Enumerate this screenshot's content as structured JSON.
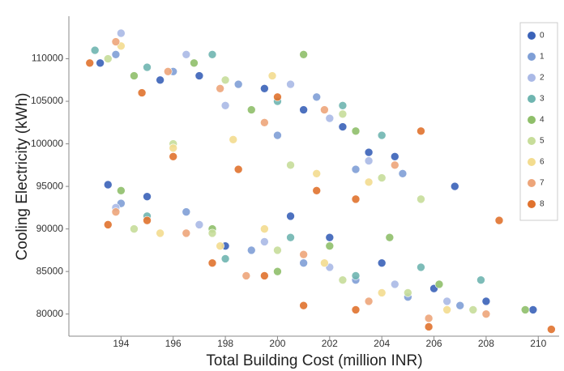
{
  "chart_data": {
    "type": "scatter",
    "x_label": "Total Building Cost (million INR)",
    "y_label": "Cooling Electricity (kWh)",
    "xlim": [
      192,
      210.8
    ],
    "ylim": [
      77400,
      115000
    ],
    "xticks": [
      194,
      196,
      198,
      200,
      202,
      204,
      206,
      208,
      210
    ],
    "yticks": [
      80000,
      85000,
      90000,
      95000,
      100000,
      105000,
      110000
    ],
    "legend": "top-right",
    "grid": false,
    "series": [
      {
        "name": "0",
        "color": "#3a62b8",
        "x": [
          193.2,
          195.5,
          197,
          199.5,
          201,
          202.5,
          203.5,
          204.5,
          206.8,
          193.5,
          195,
          198,
          200.5,
          202,
          204,
          206,
          208,
          209.8
        ],
        "y": [
          109500,
          107500,
          108000,
          106500,
          104000,
          102000,
          99000,
          98500,
          95000,
          95200,
          93800,
          88000,
          91500,
          89000,
          86000,
          83000,
          81500,
          80500
        ]
      },
      {
        "name": "1",
        "color": "#7f9fd6",
        "x": [
          193.8,
          196,
          198.5,
          200,
          201.5,
          203,
          204.8,
          194,
          196.5,
          199,
          201,
          203,
          205,
          207
        ],
        "y": [
          110500,
          108500,
          107000,
          101000,
          105500,
          97000,
          96500,
          93000,
          92000,
          87500,
          86000,
          84000,
          82000,
          81000
        ]
      },
      {
        "name": "2",
        "color": "#aab9e6",
        "x": [
          194,
          196.5,
          198,
          200.5,
          202,
          203.5,
          193.8,
          197,
          199.5,
          202,
          204.5,
          206.5
        ],
        "y": [
          113000,
          110500,
          104500,
          107000,
          103000,
          98000,
          92500,
          90500,
          88500,
          85500,
          83500,
          81500
        ]
      },
      {
        "name": "3",
        "color": "#6fb5b0",
        "x": [
          193,
          195,
          197.5,
          200,
          202.5,
          204,
          195,
          198,
          200.5,
          203,
          205.5,
          207.8
        ],
        "y": [
          111000,
          109000,
          110500,
          105000,
          104500,
          101000,
          91500,
          86500,
          89000,
          84500,
          85500,
          84000
        ]
      },
      {
        "name": "4",
        "color": "#8fbf6a",
        "x": [
          194.5,
          196.8,
          199,
          201,
          203,
          194,
          197.5,
          200,
          202,
          204.3,
          206.2,
          209.5
        ],
        "y": [
          108000,
          109500,
          104000,
          110500,
          101500,
          94500,
          90000,
          85000,
          88000,
          89000,
          83500,
          80500
        ]
      },
      {
        "name": "5",
        "color": "#c7dd9a",
        "x": [
          193.5,
          196,
          198,
          200.5,
          202.5,
          204,
          205.5,
          194.5,
          197.5,
          200,
          202.5,
          205,
          207.5
        ],
        "y": [
          110000,
          100000,
          107500,
          97500,
          103500,
          96000,
          93500,
          90000,
          89500,
          87500,
          84000,
          82500,
          80500
        ]
      },
      {
        "name": "6",
        "color": "#f3dc8f",
        "x": [
          194,
          196,
          198.3,
          199.8,
          201.5,
          203.5,
          195.5,
          197.8,
          199.5,
          201.8,
          204,
          206.5
        ],
        "y": [
          111500,
          99500,
          100500,
          108000,
          96500,
          95500,
          89500,
          88000,
          90000,
          86000,
          82500,
          80500
        ]
      },
      {
        "name": "7",
        "color": "#eda57a",
        "x": [
          193.8,
          195.8,
          197.8,
          199.5,
          201.8,
          204.5,
          193.8,
          196.5,
          198.8,
          201,
          203.5,
          205.8,
          208
        ],
        "y": [
          112000,
          108500,
          106500,
          102500,
          104000,
          97500,
          92000,
          89500,
          84500,
          87000,
          81500,
          79500,
          80000
        ]
      },
      {
        "name": "8",
        "color": "#e0722e",
        "x": [
          192.8,
          194.8,
          196,
          198.5,
          200,
          201.5,
          203,
          205.5,
          193.5,
          195,
          197.5,
          199.5,
          201,
          203,
          205.8,
          208.5,
          210.5
        ],
        "y": [
          109500,
          106000,
          98500,
          97000,
          105500,
          94500,
          93500,
          101500,
          90500,
          91000,
          86000,
          84500,
          81000,
          80500,
          78500,
          91000,
          78200
        ]
      }
    ]
  }
}
